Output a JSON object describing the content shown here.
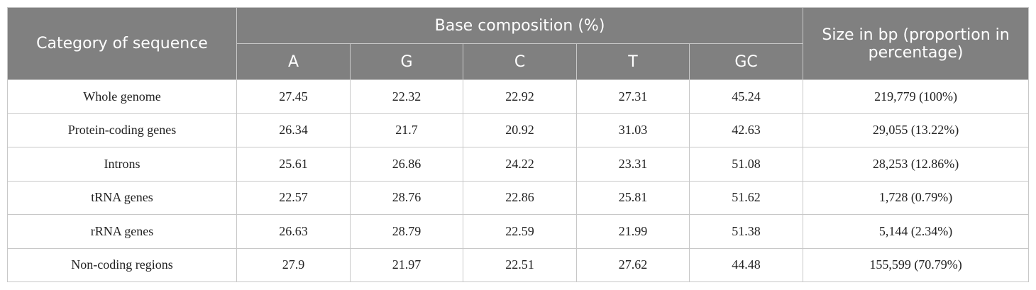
{
  "table": {
    "header": {
      "category": "Category of sequence",
      "group": "Base composition (%)",
      "columns": [
        "A",
        "G",
        "C",
        "T",
        "GC"
      ],
      "size": "Size in bp (proportion in percentage)"
    },
    "rows": [
      [
        "Whole genome",
        "27.45",
        "22.32",
        "22.92",
        "27.31",
        "45.24",
        "219,779 (100%)"
      ],
      [
        "Protein-coding genes",
        "26.34",
        "21.7",
        "20.92",
        "31.03",
        "42.63",
        "29,055 (13.22%)"
      ],
      [
        "Introns",
        "25.61",
        "26.86",
        "24.22",
        "23.31",
        "51.08",
        "28,253 (12.86%)"
      ],
      [
        "tRNA genes",
        "22.57",
        "28.76",
        "22.86",
        "25.81",
        "51.62",
        "1,728 (0.79%)"
      ],
      [
        "rRNA genes",
        "26.63",
        "28.79",
        "22.59",
        "21.99",
        "51.38",
        "5,144 (2.34%)"
      ],
      [
        "Non-coding regions",
        "27.9",
        "21.97",
        "22.51",
        "27.62",
        "44.48",
        "155,599 (70.79%)"
      ]
    ]
  }
}
